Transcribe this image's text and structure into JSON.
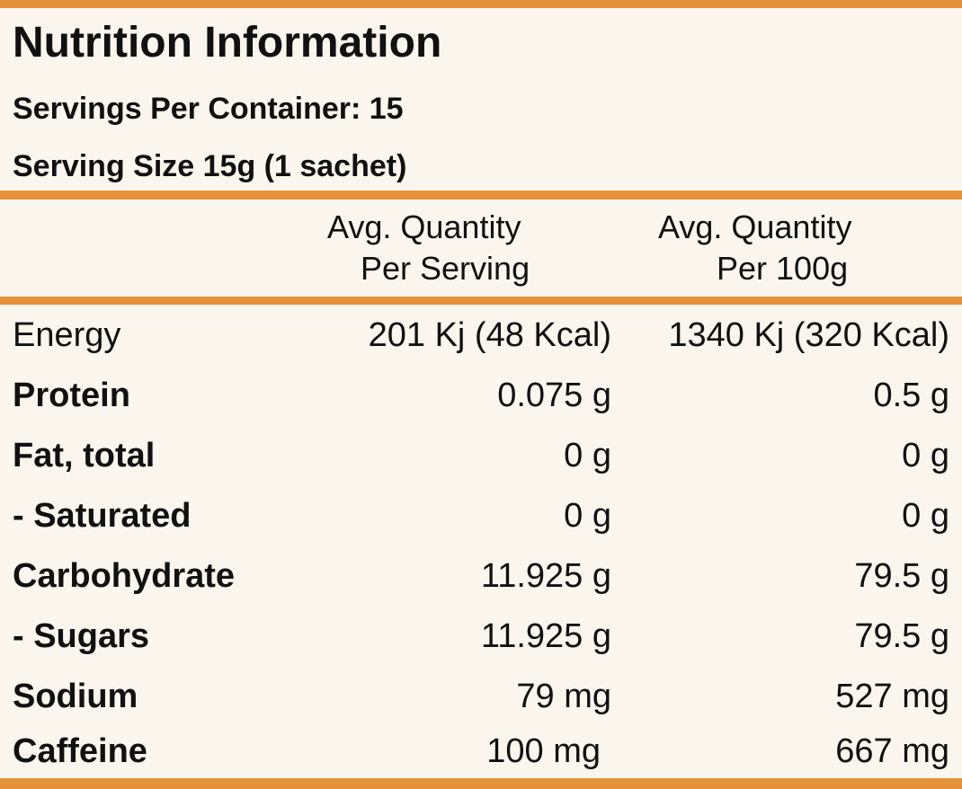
{
  "label": {
    "title": "Nutrition Information",
    "servings_per_container": "Servings Per Container: 15",
    "serving_size": "Serving Size 15g (1 sachet)",
    "accent_color": "#e5913a",
    "background_color": "#faf6ee"
  },
  "columns": {
    "per_serving": {
      "line1": "Avg. Quantity",
      "line2": "Per Serving"
    },
    "per_100g": {
      "line1": "Avg. Quantity",
      "line2": "Per 100g"
    }
  },
  "rows": [
    {
      "name": "Energy",
      "bold": false,
      "per_serving": "201 Kj (48 Kcal)",
      "per_100g": "1340 Kj (320 Kcal)"
    },
    {
      "name": "Protein",
      "bold": true,
      "per_serving": "0.075 g",
      "per_100g": "0.5 g"
    },
    {
      "name": "Fat, total",
      "bold": true,
      "per_serving": "0 g",
      "per_100g": "0 g"
    },
    {
      "name": "- Saturated",
      "bold": true,
      "per_serving": "0 g",
      "per_100g": "0 g"
    },
    {
      "name": "Carbohydrate",
      "bold": true,
      "per_serving": "11.925 g",
      "per_100g": "79.5 g"
    },
    {
      "name": "- Sugars",
      "bold": true,
      "per_serving": "11.925 g",
      "per_100g": "79.5 g"
    },
    {
      "name": "Sodium",
      "bold": true,
      "per_serving": "79 mg",
      "per_100g": "527 mg"
    },
    {
      "name": "Caffeine",
      "bold": true,
      "per_serving": "100 mg",
      "per_100g": "667 mg"
    }
  ]
}
